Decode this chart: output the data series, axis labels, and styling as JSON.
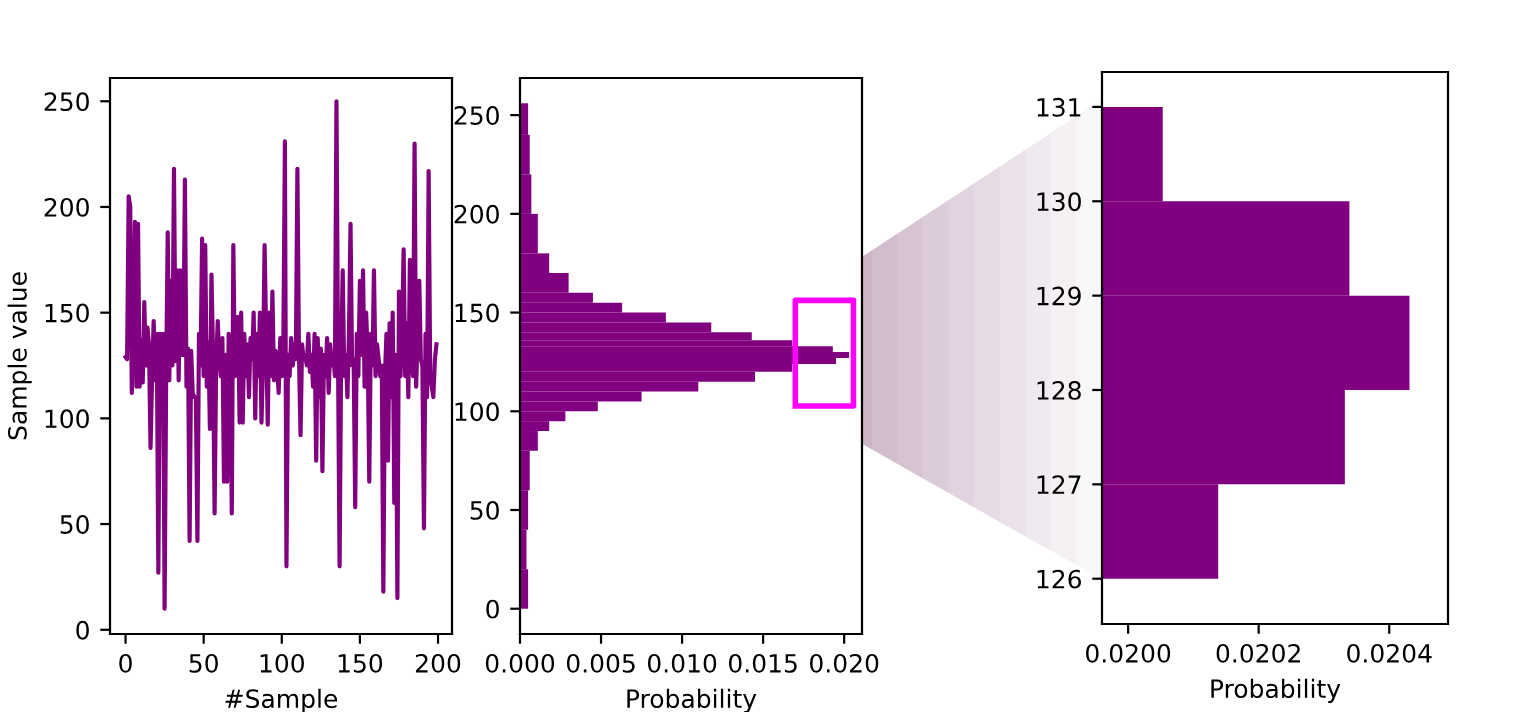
{
  "chart_data": [
    {
      "type": "line",
      "xlabel": "#Sample",
      "ylabel": "Sample value",
      "color": "#800080",
      "xlim": [
        -9.95,
        208.95
      ],
      "ylim": [
        -2,
        261
      ],
      "xticks": [
        0,
        50,
        100,
        150,
        200
      ],
      "yticks": [
        0,
        50,
        100,
        150,
        200,
        250
      ],
      "grid": false,
      "x": [
        0,
        1,
        2,
        3,
        4,
        5,
        6,
        7,
        8,
        9,
        10,
        11,
        12,
        13,
        14,
        15,
        16,
        17,
        18,
        19,
        20,
        21,
        22,
        23,
        24,
        25,
        26,
        27,
        28,
        29,
        30,
        31,
        32,
        33,
        34,
        35,
        36,
        37,
        38,
        39,
        40,
        41,
        42,
        43,
        44,
        45,
        46,
        47,
        48,
        49,
        50,
        51,
        52,
        53,
        54,
        55,
        56,
        57,
        58,
        59,
        60,
        61,
        62,
        63,
        64,
        65,
        66,
        67,
        68,
        69,
        70,
        71,
        72,
        73,
        74,
        75,
        76,
        77,
        78,
        79,
        80,
        81,
        82,
        83,
        84,
        85,
        86,
        87,
        88,
        89,
        90,
        91,
        92,
        93,
        94,
        95,
        96,
        97,
        98,
        99,
        100,
        101,
        102,
        103,
        104,
        105,
        106,
        107,
        108,
        109,
        110,
        111,
        112,
        113,
        114,
        115,
        116,
        117,
        118,
        119,
        120,
        121,
        122,
        123,
        124,
        125,
        126,
        127,
        128,
        129,
        130,
        131,
        132,
        133,
        134,
        135,
        136,
        137,
        138,
        139,
        140,
        141,
        142,
        143,
        144,
        145,
        146,
        147,
        148,
        149,
        150,
        151,
        152,
        153,
        154,
        155,
        156,
        157,
        158,
        159,
        160,
        161,
        162,
        163,
        164,
        165,
        166,
        167,
        168,
        169,
        170,
        171,
        172,
        173,
        174,
        175,
        176,
        177,
        178,
        179,
        180,
        181,
        182,
        183,
        184,
        185,
        186,
        187,
        188,
        189,
        190,
        191,
        192,
        193,
        194,
        195,
        196,
        197,
        198,
        199
      ],
      "values": [
        129,
        128,
        205,
        200,
        112,
        140,
        193,
        115,
        192,
        115,
        137,
        117,
        155,
        125,
        143,
        135,
        86,
        120,
        146,
        118,
        140,
        27,
        140,
        130,
        140,
        10,
        120,
        188,
        118,
        165,
        125,
        218,
        127,
        170,
        118,
        170,
        130,
        130,
        213,
        115,
        133,
        42,
        132,
        112,
        110,
        110,
        42,
        140,
        125,
        185,
        120,
        182,
        115,
        136,
        95,
        168,
        130,
        55,
        125,
        146,
        128,
        120,
        138,
        70,
        130,
        70,
        140,
        130,
        55,
        182,
        120,
        125,
        148,
        98,
        150,
        98,
        140,
        120,
        135,
        110,
        138,
        128,
        150,
        100,
        140,
        120,
        150,
        98,
        125,
        182,
        140,
        97,
        150,
        120,
        160,
        118,
        132,
        125,
        112,
        138,
        120,
        135,
        231,
        30,
        130,
        120,
        138,
        125,
        135,
        128,
        218,
        130,
        92,
        135,
        128,
        130,
        125,
        140,
        122,
        130,
        115,
        140,
        80,
        138,
        110,
        133,
        75,
        130,
        120,
        138,
        112,
        135,
        125,
        130,
        120,
        250,
        128,
        30,
        130,
        170,
        120,
        130,
        110,
        140,
        192,
        125,
        128,
        58,
        140,
        120,
        165,
        130,
        170,
        115,
        150,
        130,
        70,
        140,
        125,
        170,
        120,
        135,
        128,
        120,
        125,
        18,
        120,
        140,
        80,
        145,
        110,
        150,
        60,
        130,
        15,
        160,
        120,
        140,
        180,
        120,
        145,
        110,
        175,
        130,
        120,
        230,
        115,
        140,
        165,
        128,
        125,
        48,
        140,
        110,
        217,
        120,
        115,
        110,
        128,
        135
      ]
    },
    {
      "type": "histogram",
      "orientation": "horizontal",
      "xlabel": "Probability",
      "color": "#800080",
      "xlim": [
        0,
        0.0211
      ],
      "ylim": [
        -12.8,
        268.8
      ],
      "xticks": [
        {
          "value": 0,
          "label": "0.000"
        },
        {
          "value": 0.005,
          "label": "0.005"
        },
        {
          "value": 0.01,
          "label": "0.010"
        },
        {
          "value": 0.015,
          "label": "0.015"
        },
        {
          "value": 0.02,
          "label": "0.020"
        }
      ],
      "yticks": [
        0,
        50,
        100,
        150,
        200,
        250
      ],
      "bins": [
        0,
        20,
        40,
        60,
        80,
        90,
        95,
        100,
        105,
        110,
        115,
        120,
        124,
        127,
        130,
        133,
        136,
        140,
        145,
        150,
        155,
        160,
        170,
        180,
        200,
        220,
        240,
        256
      ],
      "values": [
        0.0005,
        0.0004,
        0.0005,
        0.0006,
        0.0011,
        0.0018,
        0.0028,
        0.0048,
        0.0075,
        0.011,
        0.0145,
        0.0168,
        0.0195,
        0.0203,
        0.0193,
        0.0168,
        0.0143,
        0.0118,
        0.009,
        0.0063,
        0.0045,
        0.003,
        0.0018,
        0.0011,
        0.0007,
        0.0006,
        0.0005
      ]
    },
    {
      "type": "histogram",
      "orientation": "horizontal",
      "xlabel": "Probability",
      "color": "#800080",
      "xlim": [
        0.01996,
        0.02049
      ],
      "ylim": [
        125.52,
        131.37
      ],
      "xticks": [
        {
          "value": 0.02,
          "label": "0.0200"
        },
        {
          "value": 0.0202,
          "label": "0.0202"
        },
        {
          "value": 0.0204,
          "label": "0.0204"
        }
      ],
      "yticks": [
        126,
        127,
        128,
        129,
        130,
        131
      ],
      "bins": [
        126,
        127,
        128,
        129,
        130,
        131
      ],
      "values": [
        0.020138,
        0.020332,
        0.020431,
        0.020339,
        0.020053
      ]
    }
  ]
}
